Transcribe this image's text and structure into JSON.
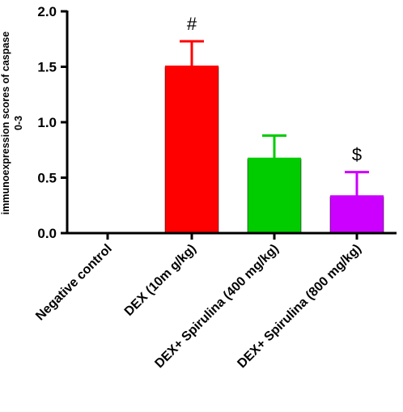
{
  "chart_data": {
    "type": "bar",
    "title": "",
    "xlabel": "",
    "ylabel_line1": "immunoexpression scores of caspase",
    "ylabel_line2": "0-3",
    "ylim": [
      0,
      2.0
    ],
    "yticks": [
      "0.0",
      "0.5",
      "1.0",
      "1.5",
      "2.0"
    ],
    "grid": false,
    "categories": [
      "Negative control",
      "DEX (10m g/kg)",
      "DEX+ Spirulina (400 mg/kg)",
      "DEX+ Spirulina (800 mg/kg)"
    ],
    "values": [
      0.0,
      1.5,
      0.67,
      0.33
    ],
    "errors": [
      0.0,
      0.23,
      0.21,
      0.22
    ],
    "colors": [
      "#ffffff",
      "#ff0000",
      "#00cc00",
      "#cc00ff"
    ],
    "annotations": [
      "",
      "#",
      "",
      "$"
    ]
  }
}
